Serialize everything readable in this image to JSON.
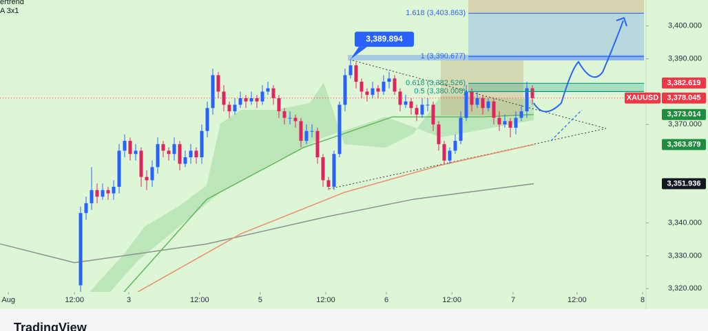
{
  "header": [
    "ertrend",
    "A 3x1"
  ],
  "footer": "TradingView",
  "chart_data": {
    "type": "candlestick",
    "symbol": "XAUUSD",
    "up_color": "#2962ff",
    "down_color": "#e0245e",
    "xlim": [
      -14.625,
      102.25
    ],
    "ylim": [
      3319.0,
      3407.9
    ],
    "xticks": [
      {
        "value": -13.1,
        "label": "Aug"
      },
      {
        "value": -1.1,
        "label": "12:00"
      },
      {
        "value": 8.75,
        "label": "3"
      },
      {
        "value": 21.6,
        "label": "12:00"
      },
      {
        "value": 32.6,
        "label": "5"
      },
      {
        "value": 44.5,
        "label": "12:00"
      },
      {
        "value": 55.5,
        "label": "6"
      },
      {
        "value": 67.4,
        "label": "12:00"
      },
      {
        "value": 78.5,
        "label": "7"
      },
      {
        "value": 90.1,
        "label": "12:00"
      },
      {
        "value": 102,
        "label": "8"
      }
    ],
    "yticks": [
      {
        "value": 3400,
        "label": "3,400.000"
      },
      {
        "value": 3390,
        "label": "3,390.000"
      },
      {
        "value": 3370,
        "label": "3,370.000"
      },
      {
        "value": 3340,
        "label": "3,340.000"
      },
      {
        "value": 3330,
        "label": "3,330.000"
      },
      {
        "value": 3320,
        "label": "3,320.000"
      }
    ],
    "x": [
      0,
      1,
      2,
      3,
      4,
      5,
      6,
      7,
      8,
      9,
      10,
      11,
      12,
      13,
      14,
      15,
      16,
      17,
      18,
      19,
      20,
      21,
      22,
      23,
      24,
      25,
      26,
      27,
      28,
      29,
      30,
      31,
      32,
      33,
      34,
      35,
      36,
      37,
      38,
      39,
      40,
      41,
      42,
      43,
      44,
      45,
      46,
      47,
      48,
      49,
      50,
      51,
      52,
      53,
      54,
      55,
      56,
      57,
      58,
      59,
      60,
      61,
      62,
      63,
      64,
      65,
      66,
      67,
      68,
      69,
      70,
      71,
      72,
      73,
      74,
      75,
      76,
      77,
      78,
      79,
      80,
      81,
      82
    ],
    "open": [
      3321,
      3343,
      3346,
      3350,
      3348,
      3350,
      3349,
      3351,
      3362,
      3365,
      3361,
      3362,
      3354,
      3353,
      3357,
      3364,
      3362,
      3361,
      3364,
      3358,
      3360,
      3362,
      3360,
      3368,
      3375,
      3385,
      3380,
      3376,
      3374,
      3376,
      3378,
      3377,
      3378,
      3377,
      3380,
      3381,
      3378,
      3374,
      3372,
      3372,
      3371,
      3365,
      3368,
      3368,
      3360,
      3353,
      3351,
      3361,
      3376,
      3385,
      3388,
      3383,
      3380,
      3379,
      3381,
      3380,
      3383,
      3384,
      3380,
      3376,
      3377,
      3375,
      3373,
      3376,
      3376,
      3370,
      3364,
      3359,
      3362,
      3365,
      3372,
      3380,
      3376,
      3378,
      3375,
      3377,
      3372,
      3370,
      3371,
      3369,
      3372,
      3374,
      3381
    ],
    "high": [
      3345,
      3348,
      3357,
      3352,
      3352,
      3351,
      3353,
      3364,
      3367,
      3366,
      3364,
      3363,
      3356,
      3359,
      3366,
      3365,
      3363,
      3366,
      3365,
      3362,
      3364,
      3363,
      3370,
      3377,
      3387,
      3386,
      3382,
      3377,
      3378,
      3380,
      3379,
      3380,
      3379,
      3382,
      3383,
      3382,
      3379,
      3375,
      3374,
      3373,
      3372,
      3370,
      3370,
      3369,
      3361,
      3354,
      3362,
      3377,
      3387,
      3389.894,
      3389,
      3384,
      3381,
      3383,
      3382,
      3385,
      3386,
      3385,
      3381,
      3379,
      3378,
      3376,
      3378,
      3378,
      3377,
      3371,
      3365,
      3363,
      3367,
      3374,
      3382,
      3381,
      3380,
      3379,
      3378,
      3378,
      3374,
      3373,
      3372,
      3374,
      3376,
      3383,
      3382
    ],
    "low": [
      3319,
      3341,
      3344,
      3346,
      3347,
      3347,
      3347,
      3349,
      3360,
      3359,
      3359,
      3351,
      3350,
      3351,
      3355,
      3360,
      3359,
      3359,
      3356,
      3357,
      3358,
      3358,
      3358,
      3366,
      3373,
      3378,
      3374,
      3372,
      3373,
      3375,
      3375,
      3376,
      3375,
      3376,
      3379,
      3376,
      3372,
      3370,
      3370,
      3369,
      3363,
      3364,
      3366,
      3358,
      3351,
      3350,
      3350,
      3360,
      3374,
      3384,
      3381,
      3378,
      3377,
      3378,
      3378,
      3379,
      3381,
      3379,
      3374,
      3375,
      3373,
      3371,
      3372,
      3374,
      3368,
      3362,
      3358,
      3358,
      3361,
      3364,
      3371,
      3374,
      3375,
      3373,
      3374,
      3370,
      3368,
      3369,
      3366,
      3367,
      3371,
      3372,
      3376
    ],
    "close": [
      3343,
      3346,
      3350,
      3348,
      3350,
      3349,
      3351,
      3362,
      3365,
      3361,
      3362,
      3354,
      3353,
      3357,
      3364,
      3362,
      3361,
      3364,
      3358,
      3360,
      3362,
      3360,
      3368,
      3375,
      3385,
      3380,
      3376,
      3374,
      3376,
      3378,
      3377,
      3378,
      3377,
      3380,
      3381,
      3378,
      3374,
      3372,
      3372,
      3371,
      3365,
      3368,
      3368,
      3360,
      3353,
      3351,
      3361,
      3376,
      3385,
      3388,
      3383,
      3380,
      3379,
      3381,
      3380,
      3383,
      3384,
      3380,
      3376,
      3377,
      3375,
      3373,
      3376,
      3376,
      3370,
      3364,
      3359,
      3362,
      3365,
      3372,
      3380,
      3376,
      3378,
      3375,
      3377,
      3372,
      3370,
      3371,
      3369,
      3372,
      3374,
      3381,
      3378
    ],
    "lines": [
      {
        "color": "#8f8f8f",
        "x": [
          -14.6,
          -1.1,
          22.9,
          44.75,
          60.4,
          82.25
        ],
        "values": [
          3333.6,
          3327.9,
          3333.6,
          3341.9,
          3347.2,
          3351.936
        ]
      },
      {
        "color": "#5fb85a",
        "x": [
          7.9,
          22.9,
          40.4,
          56.6,
          72.9,
          82.25
        ],
        "values": [
          3319.0,
          3347.2,
          3362.9,
          3372.3,
          3372.3,
          3373.014
        ]
      },
      {
        "color": "#f08a6e",
        "x": [
          10.4,
          29.1,
          47.9,
          65.4,
          82.25
        ],
        "values": [
          3319.0,
          3336.7,
          3349.3,
          3357.6,
          3363.879
        ]
      }
    ],
    "high_label": {
      "value": 3389.894,
      "label": "3,389.894"
    },
    "fib_levels": [
      {
        "value": 3403.863,
        "label": "1.618 (3,403.863)",
        "color": "#2962ff"
      },
      {
        "value": 3390.677,
        "label": "1 (3,390.677)",
        "color": "#2962ff"
      },
      {
        "value": 3382.526,
        "label": "0.618 (3,382.526)",
        "color": "#089981"
      },
      {
        "value": 3380.008,
        "label": "0.5 (3,380.008)",
        "color": "#089981"
      }
    ],
    "price_labels": [
      {
        "value": 3382.619,
        "label": "3,382.619",
        "color": "#f23645"
      },
      {
        "value": 3378.045,
        "label": "3,378.045",
        "color": "#f23645"
      },
      {
        "value": 3373.014,
        "label": "3,373.014",
        "color": "#1e8e3e"
      },
      {
        "value": 3363.879,
        "label": "3,363.879",
        "color": "#1e8e3e"
      },
      {
        "value": 3351.936,
        "label": "3,351.936",
        "color": "#131722"
      }
    ]
  }
}
